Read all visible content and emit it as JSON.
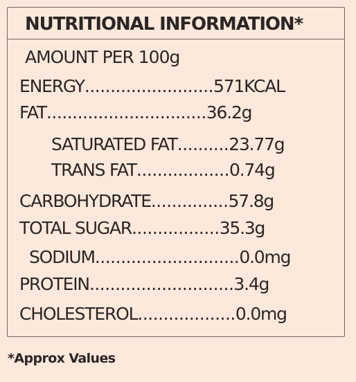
{
  "title": "NUTRITIONAL INFORMATION*",
  "subheading": "AMOUNT PER 100g",
  "rows": [
    {
      "label": "ENERGY",
      "dots": ".........................",
      "value": "571KCAL"
    },
    {
      "label": "FAT",
      "dots": "...............................",
      "value": "36.2g"
    },
    {
      "label": "SATURATED FAT",
      "dots": "..........",
      "value": "23.77g"
    },
    {
      "label": "TRANS FAT",
      "dots": "..................",
      "value": "0.74g"
    },
    {
      "label": "CARBOHYDRATE",
      "dots": "...............",
      "value": "57.8g"
    },
    {
      "label": "TOTAL SUGAR",
      "dots": ".................",
      "value": "35.3g"
    },
    {
      "label": "SODIUM",
      "dots": "............................",
      "value": "0.0mg"
    },
    {
      "label": "PROTEIN",
      "dots": "............................",
      "value": "3.4g"
    },
    {
      "label": "CHOLESTEROL",
      "dots": "...................",
      "value": "0.0mg"
    }
  ],
  "footnote": "*Approx Values"
}
